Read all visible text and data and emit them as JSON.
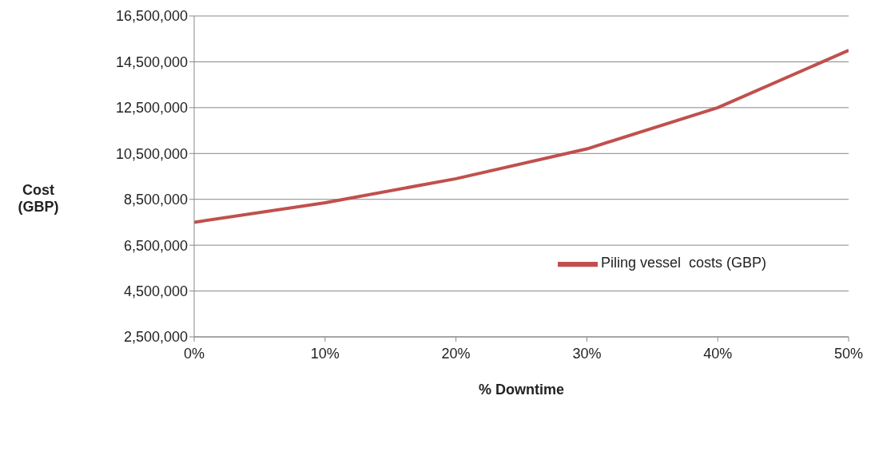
{
  "chart_data": {
    "type": "line",
    "xlabel": "% Downtime",
    "ylabel": "Cost (GBP)",
    "x": [
      0,
      10,
      20,
      30,
      40,
      50
    ],
    "series": [
      {
        "name": "Piling vessel  costs (GBP)",
        "color": "#c0504d",
        "values": [
          7500000,
          8350000,
          9400000,
          10700000,
          12500000,
          15000000
        ]
      }
    ],
    "xlim": [
      0,
      50
    ],
    "xticks": [
      {
        "value": 0,
        "label": "0%"
      },
      {
        "value": 10,
        "label": "10%"
      },
      {
        "value": 20,
        "label": "20%"
      },
      {
        "value": 30,
        "label": "30%"
      },
      {
        "value": 40,
        "label": "40%"
      },
      {
        "value": 50,
        "label": "50%"
      }
    ],
    "ylim": [
      2500000,
      16500000
    ],
    "yticks": [
      {
        "value": 2500000,
        "label": "2,500,000"
      },
      {
        "value": 4500000,
        "label": "4,500,000"
      },
      {
        "value": 6500000,
        "label": "6,500,000"
      },
      {
        "value": 8500000,
        "label": "8,500,000"
      },
      {
        "value": 10500000,
        "label": "10,500,000"
      },
      {
        "value": 12500000,
        "label": "12,500,000"
      },
      {
        "value": 14500000,
        "label": "14,500,000"
      },
      {
        "value": 16500000,
        "label": "16,500,000"
      }
    ],
    "grid": "y",
    "legend": "right",
    "marker": "none",
    "line_style": "solid"
  }
}
